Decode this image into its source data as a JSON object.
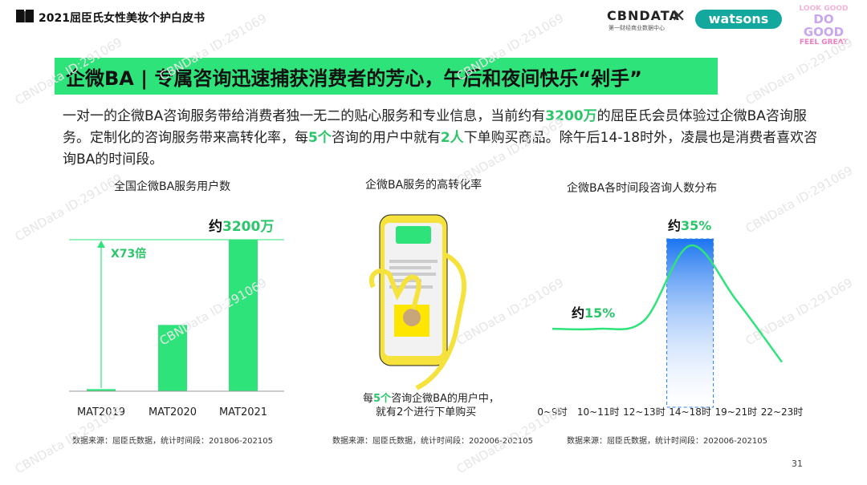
{
  "header": {
    "report_title": "2021屈臣氏女性美妆个护白皮书",
    "logo_cbn": "CBNDATA",
    "logo_cbn_sub": "第一财经商业数据中心",
    "logo_x": "✕",
    "logo_watsons": "watsons",
    "logo_look_1": "LOOK GOOD",
    "logo_look_2": "DO GOOD",
    "logo_look_3": "FEEL GREAT"
  },
  "banner": {
    "title": "企微BA | 专属咨询迅速捕获消费者的芳心，午后和夜间快乐“剁手”"
  },
  "intro": {
    "p1": "一对一的企微BA咨询服务带给消费者独一无二的贴心服务和专业信息，当前约有",
    "h1": "3200万",
    "p2": "的屈臣氏会员体验过企微BA咨询服务。定制化的咨询服务带来高转化率，每",
    "h2": "5个",
    "p3": "咨询的用户中就有",
    "h3": "2人",
    "p4": "下单购买商品。除午后14-18时外，凌晨也是消费者喜欢咨询BA的时间段。"
  },
  "chart_data": [
    {
      "type": "bar",
      "title": "全国企微BA服务用户数",
      "categories": [
        "MAT2019",
        "MAT2020",
        "MAT2021"
      ],
      "values": [
        0.44,
        14,
        32
      ],
      "annotation_multiplier": "X73倍",
      "annotation_top_prefix": "约",
      "annotation_top_value": "3200万",
      "source": "数据来源：屈臣氏数据，统计时间段：201806-202105",
      "color": "#2fe37b"
    },
    {
      "type": "line",
      "title": "企微BA各时间段咨询人数分布",
      "categories": [
        "0~9时",
        "10~11时",
        "12~13时",
        "14~18时",
        "19~21时",
        "22~23时"
      ],
      "values": [
        15,
        15,
        17,
        35,
        22,
        7
      ],
      "annotation_low_prefix": "约",
      "annotation_low_value": "15%",
      "annotation_high_prefix": "约",
      "annotation_high_value": "35%",
      "highlight_category": "14~18时",
      "source": "数据来源：屈臣氏数据，统计时间段：202006-202105",
      "color": "#2fe37b"
    }
  ],
  "middle": {
    "title": "企微BA服务的高转化率",
    "caption_1_pre": "每",
    "caption_1_hl": "5个",
    "caption_1_post": "咨询企微BA的用户中，",
    "caption_2": "就有2个进行下单购买",
    "source": "数据来源：屈臣氏数据，统计时间段：202006-202105"
  },
  "watermark": "CBNData ID:291069",
  "page_number": "31",
  "colors": {
    "accent": "#2fe37b",
    "highlight_text": "#2bc56a",
    "phone": "#f5e23c"
  }
}
